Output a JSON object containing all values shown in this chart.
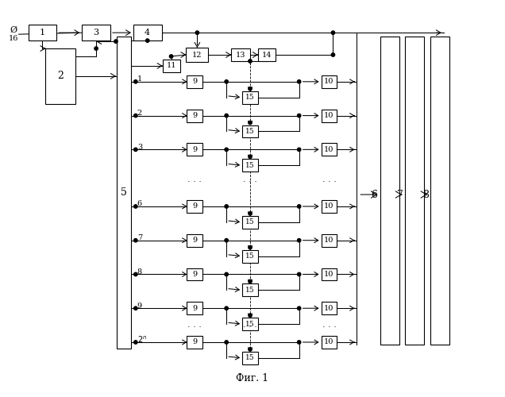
{
  "title": "Фиг. 1",
  "bg_color": "#ffffff",
  "fig_width": 6.36,
  "fig_height": 5.0,
  "dpi": 100
}
